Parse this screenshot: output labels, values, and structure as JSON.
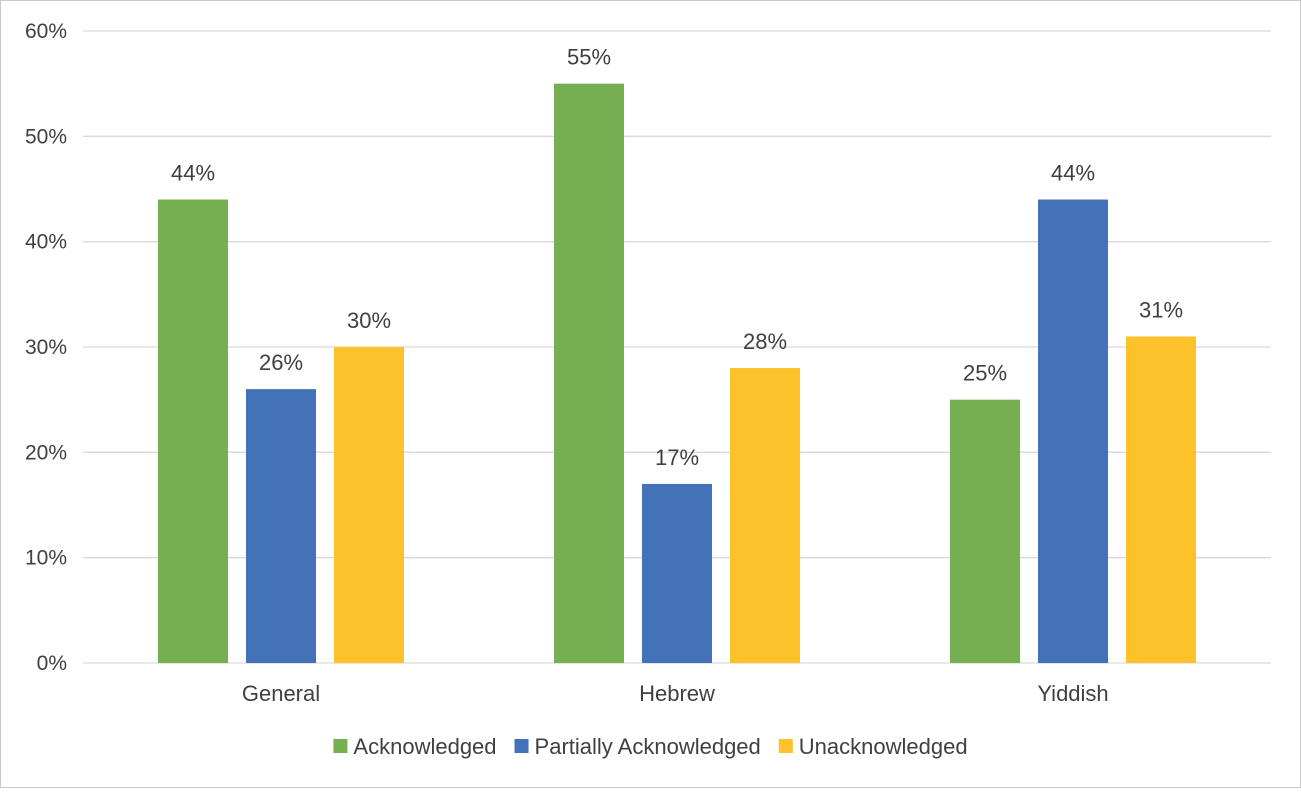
{
  "chart_data": {
    "type": "bar",
    "title": "",
    "xlabel": "",
    "ylabel": "",
    "categories": [
      "General",
      "Hebrew",
      "Yiddish"
    ],
    "series": [
      {
        "name": "Acknowledged",
        "color": "#76ae52",
        "values": [
          44,
          55,
          25
        ]
      },
      {
        "name": "Partially Acknowledged",
        "color": "#4472b8",
        "values": [
          26,
          17,
          44
        ]
      },
      {
        "name": "Unacknowledged",
        "color": "#fdc12a",
        "values": [
          30,
          28,
          31
        ]
      }
    ],
    "ylim": [
      0,
      60
    ],
    "yticks": [
      "0%",
      "10%",
      "20%",
      "30%",
      "40%",
      "50%",
      "60%"
    ],
    "value_format": "percent",
    "grid": true,
    "legend": "bottom-center"
  }
}
